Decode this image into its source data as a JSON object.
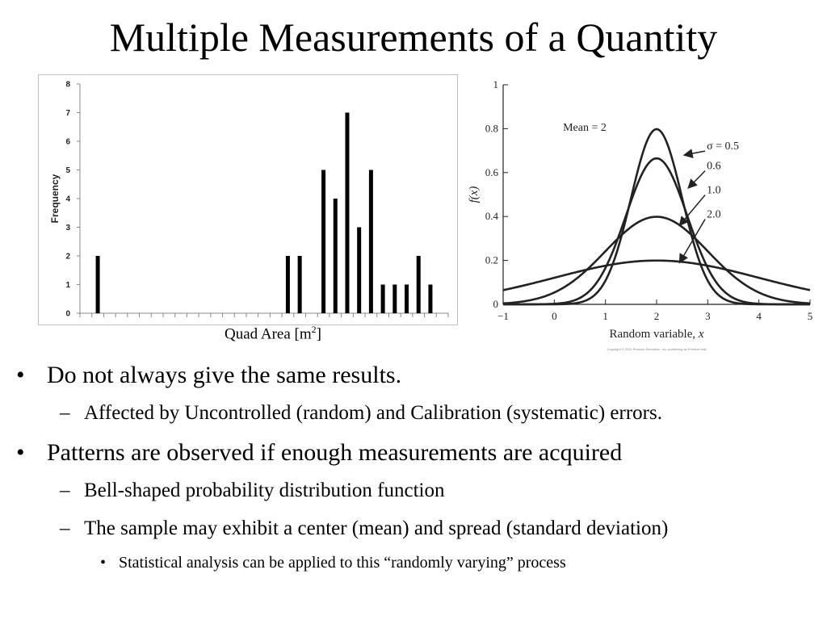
{
  "slide": {
    "title": "Multiple Measurements of a Quantity",
    "caption_text": "Quad Area [m",
    "caption_sup": "2",
    "caption_close": "]"
  },
  "bullets": {
    "l1_a": "Do not always give the same results.",
    "l2_a": "Affected by Uncontrolled (random) and Calibration (systematic) errors.",
    "l1_b": "Patterns are observed if enough measurements are acquired",
    "l2_b": "Bell-shaped probability distribution function",
    "l2_c": "The sample may exhibit a center (mean) and spread (standard deviation)",
    "l3_a": "Statistical analysis can be applied to this “randomly varying” process",
    "mark1": "•",
    "mark2": "–",
    "mark3": "•"
  },
  "chart_data": [
    {
      "type": "bar",
      "ylabel": "Frequency",
      "xlabel": "Quad Area [m2]",
      "ylim": [
        0,
        8
      ],
      "yticks": [
        "0",
        "1",
        "2",
        "3",
        "4",
        "5",
        "6",
        "7",
        "8"
      ],
      "num_bins": 31,
      "bin_values": [
        0,
        2,
        0,
        0,
        0,
        0,
        0,
        0,
        0,
        0,
        0,
        0,
        0,
        0,
        0,
        0,
        0,
        2,
        2,
        0,
        5,
        4,
        7,
        3,
        5,
        1,
        1,
        1,
        2,
        1,
        0
      ],
      "bar_color": "#000000",
      "grid": false
    },
    {
      "type": "line",
      "xlabel": "Random variable, x",
      "ylabel": "f(x)",
      "xlim": [
        -1,
        5
      ],
      "ylim": [
        0,
        1
      ],
      "xticks": [
        "−1",
        "0",
        "1",
        "2",
        "3",
        "4",
        "5"
      ],
      "yticks": [
        "0",
        "0.2",
        "0.4",
        "0.6",
        "0.8",
        "1"
      ],
      "annotation": "Mean = 2",
      "mean": 2,
      "series": [
        {
          "name": "σ = 0.5",
          "sigma": 0.5
        },
        {
          "name": "0.6",
          "sigma": 0.6
        },
        {
          "name": "1.0",
          "sigma": 1.0
        },
        {
          "name": "2.0",
          "sigma": 2.0
        }
      ],
      "line_color": "#222222",
      "copyright": "Copyright © 2011 Pearson Education, Inc. publishing as Prentice Hall"
    }
  ]
}
